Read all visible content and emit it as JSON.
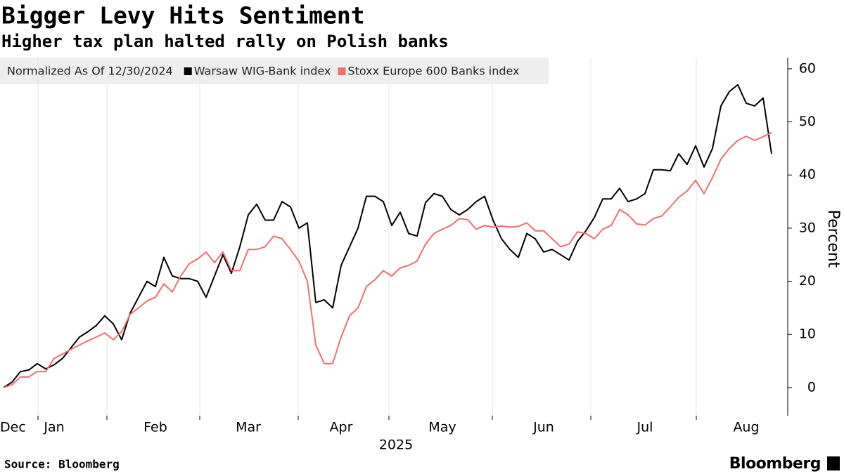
{
  "chart_data": {
    "type": "line",
    "title": "Bigger Levy Hits Sentiment",
    "subtitle": "Higher tax plan halted rally on Polish banks",
    "legend_title": "Normalized As Of 12/30/2024",
    "ylabel": "Percent",
    "xlabel": "2025",
    "source": "Source: Bloomberg",
    "brand": "Bloomberg",
    "categories": [
      null,
      "Dec",
      null,
      null,
      null,
      null,
      "Jan",
      null,
      null,
      null,
      null,
      null,
      null,
      null,
      null,
      null,
      null,
      null,
      "Feb",
      null,
      null,
      null,
      null,
      null,
      null,
      null,
      null,
      null,
      null,
      "Mar",
      null,
      null,
      null,
      null,
      null,
      null,
      null,
      null,
      null,
      null,
      "Apr",
      null,
      null,
      null,
      null,
      null,
      null,
      null,
      null,
      null,
      null,
      null,
      "May",
      null,
      null,
      null,
      null,
      null,
      null,
      null,
      null,
      null,
      null,
      null,
      "Jun",
      null,
      null,
      null,
      null,
      null,
      null,
      null,
      null,
      null,
      null,
      null,
      "Jul",
      null,
      null,
      null,
      null,
      null,
      null,
      null,
      null,
      null,
      null,
      null,
      "Aug",
      null,
      null,
      null
    ],
    "series": [
      {
        "name": "Warsaw WIG-Bank index",
        "color": "#000000",
        "values": [
          0,
          1,
          3,
          3.3,
          4.5,
          3.5,
          4.3,
          5.5,
          7.5,
          9.5,
          10.5,
          11.7,
          13.5,
          12,
          9,
          14,
          17,
          20,
          19,
          24.5,
          21,
          20.5,
          20.5,
          20,
          17,
          21,
          25,
          21.5,
          26.5,
          32.5,
          34.5,
          31.5,
          31.5,
          35,
          34,
          30,
          31,
          16,
          16.5,
          15,
          23,
          26.5,
          30,
          36,
          36,
          35,
          30.5,
          33,
          29,
          28.5,
          34.8,
          36.5,
          36,
          33.5,
          32.5,
          33.5,
          35,
          36,
          31.5,
          28,
          26,
          24.5,
          29,
          28,
          25.5,
          26,
          25,
          24,
          27.5,
          29.5,
          32,
          35.5,
          35.5,
          37.5,
          35,
          35.5,
          36.5,
          41,
          41,
          40.8,
          44,
          42,
          45.5,
          41.5,
          45,
          53,
          55.7,
          57,
          53.5,
          53,
          54.5,
          44
        ]
      },
      {
        "name": "Stoxx Europe 600 Banks index",
        "color": "#f26d6d",
        "values": [
          0,
          0.5,
          2,
          2,
          3,
          3,
          5.5,
          6.3,
          7.2,
          8,
          8.8,
          9.5,
          10.3,
          9,
          10.5,
          13.8,
          15,
          16.3,
          17,
          19.5,
          18,
          21,
          23.3,
          24.2,
          25.5,
          23.5,
          25.5,
          22,
          22,
          26,
          26,
          26.5,
          28.5,
          28,
          26,
          23.8,
          20,
          8,
          4.5,
          4.5,
          9.5,
          13.5,
          15,
          19,
          20.3,
          22,
          21,
          22.5,
          23,
          23.8,
          27,
          29,
          29.8,
          30.5,
          31.8,
          31.6,
          29.8,
          30.5,
          30.2,
          30.4,
          30.2,
          30.3,
          31,
          29.5,
          29.5,
          28,
          26.5,
          27,
          29.3,
          29,
          28,
          29.8,
          30.5,
          33.5,
          32.5,
          30.8,
          30.6,
          31.8,
          32.3,
          34,
          35.8,
          37,
          39,
          36.5,
          39.5,
          43,
          45,
          46.5,
          47.3,
          46.5,
          47.2,
          48
        ]
      }
    ],
    "ylim": [
      -5.3,
      62.1
    ],
    "yticks": [
      0,
      10,
      20,
      30,
      40,
      50,
      60
    ]
  }
}
